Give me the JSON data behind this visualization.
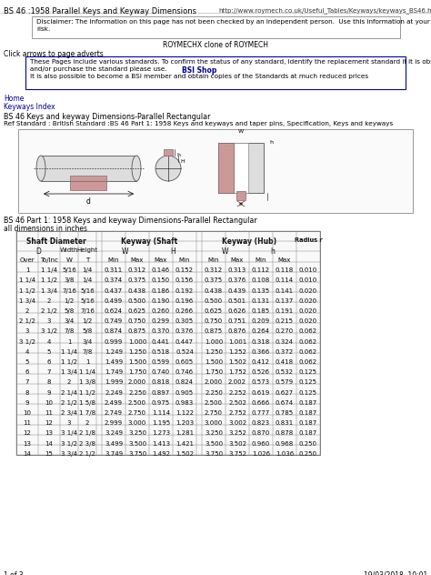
{
  "page_title_left": "BS 46 :1958 Parallel Keys and Keyway Dimensions",
  "page_title_right": "http://www.roymech.co.uk/Useful_Tables/Keyways/keyways_BS46.html",
  "disclaimer_line1": "Disclaimer: The information on this page has not been checked by an independent person.  Use this information at your own",
  "disclaimer_line2": "risk.",
  "roymech_line": "ROYMECHX clone of ROYMECH",
  "click_arrows": "Click arrows to page adverts",
  "bsi_line1": "These Pages include various standards. To confirm the status of any standard, identify the replacement standard if it is obsolete",
  "bsi_line2": "and/or purchase the standard please use.",
  "bsi_line3": "It is also possible to become a BSI member and obtain copies of the Standards at much reduced prices",
  "bsi_link": "BSI Shop",
  "home_link": "Home",
  "keyway_link": "Keyways Index",
  "section_title": "BS 46 Keys and keyway Dimensions-Parallel Rectangular",
  "ref_standard": "Ref Standard : British Standard :BS 46 Part 1: 1958 Keys and keyways and taper pins, Specification, Keys and keyways",
  "table_title": "BS 46 Part 1: 1958 Keys and keyway Dimensions-Parallel Rectangular",
  "all_dims": "all dimensions in inches",
  "footer_left": "1 of 3",
  "footer_right": "19/03/2018, 10:01",
  "rows": [
    [
      "1",
      "1 1/4",
      "5/16",
      "1/4",
      "0.311",
      "0.312",
      "0.146",
      "0.152",
      "0.312",
      "0.313",
      "0.112",
      "0.118",
      "0.010"
    ],
    [
      "1 1/4",
      "1 1/2",
      "3/8",
      "1/4",
      "0.374",
      "0.375",
      "0.150",
      "0.156",
      "0.375",
      "0.376",
      "0.108",
      "0.114",
      "0.010"
    ],
    [
      "1 1/2",
      "1 3/4",
      "7/16",
      "5/16",
      "0.437",
      "0.438",
      "0.186",
      "0.192",
      "0.438",
      "0.439",
      "0.135",
      "0.141",
      "0.020"
    ],
    [
      "1 3/4",
      "2",
      "1/2",
      "5/16",
      "0.499",
      "0.500",
      "0.190",
      "0.196",
      "0.500",
      "0.501",
      "0.131",
      "0.137",
      "0.020"
    ],
    [
      "2",
      "2 1/2",
      "5/8",
      "7/16",
      "0.624",
      "0.625",
      "0.260",
      "0.266",
      "0.625",
      "0.626",
      "0.185",
      "0.191",
      "0.020"
    ],
    [
      "2 1/2",
      "3",
      "3/4",
      "1/2",
      "0.749",
      "0.750",
      "0.299",
      "0.305",
      "0.750",
      "0.751",
      "0.209",
      "0.215",
      "0.020"
    ],
    [
      "3",
      "3 1/2",
      "7/8",
      "5/8",
      "0.874",
      "0.875",
      "0.370",
      "0.376",
      "0.875",
      "0.876",
      "0.264",
      "0.270",
      "0.062"
    ],
    [
      "3 1/2",
      "4",
      "1",
      "3/4",
      "0.999",
      "1.000",
      "0.441",
      "0.447",
      "1.000",
      "1.001",
      "0.318",
      "0.324",
      "0.062"
    ],
    [
      "4",
      "5",
      "1 1/4",
      "7/8",
      "1.249",
      "1.250",
      "0.518",
      "0.524",
      "1.250",
      "1.252",
      "0.366",
      "0.372",
      "0.062"
    ],
    [
      "5",
      "6",
      "1 1/2",
      "1",
      "1.499",
      "1.500",
      "0.599",
      "0.605",
      "1.500",
      "1.502",
      "0.412",
      "0.418",
      "0.062"
    ],
    [
      "6",
      "7",
      "1 3/4",
      "1 1/4",
      "1.749",
      "1.750",
      "0.740",
      "0.746",
      "1.750",
      "1.752",
      "0.526",
      "0.532",
      "0.125"
    ],
    [
      "7",
      "8",
      "2",
      "1 3/8",
      "1.999",
      "2.000",
      "0.818",
      "0.824",
      "2.000",
      "2.002",
      "0.573",
      "0.579",
      "0.125"
    ],
    [
      "8",
      "9",
      "2 1/4",
      "1 1/2",
      "2.249",
      "2.250",
      "0.897",
      "0.905",
      "2.250",
      "2.252",
      "0.619",
      "0.627",
      "0.125"
    ],
    [
      "9",
      "10",
      "2 1/2",
      "1 5/8",
      "2.499",
      "2.500",
      "0.975",
      "0.983",
      "2.500",
      "2.502",
      "0.666",
      "0.674",
      "0.187"
    ],
    [
      "10",
      "11",
      "2 3/4",
      "1 7/8",
      "2.749",
      "2.750",
      "1.114",
      "1.122",
      "2.750",
      "2.752",
      "0.777",
      "0.785",
      "0.187"
    ],
    [
      "11",
      "12",
      "3",
      "2",
      "2.999",
      "3.000",
      "1.195",
      "1.203",
      "3.000",
      "3.002",
      "0.823",
      "0.831",
      "0.187"
    ],
    [
      "12",
      "13",
      "3 1/4",
      "2 1/8",
      "3.249",
      "3.250",
      "1.273",
      "1.281",
      "3.250",
      "3.252",
      "0.870",
      "0.878",
      "0.187"
    ],
    [
      "13",
      "14",
      "3 1/2",
      "2 3/8",
      "3.499",
      "3.500",
      "1.413",
      "1.421",
      "3.500",
      "3.502",
      "0.960",
      "0.968",
      "0.250"
    ],
    [
      "14",
      "15",
      "3 3/4",
      "2 1/2",
      "3.749",
      "3.750",
      "1.492",
      "1.502",
      "3.750",
      "3.752",
      "1.026",
      "1.036",
      "0.250"
    ]
  ],
  "bg_color": "#ffffff",
  "link_color": "#000099",
  "font_size_body": 5.5,
  "font_size_table": 5.2,
  "font_size_small": 5.0
}
